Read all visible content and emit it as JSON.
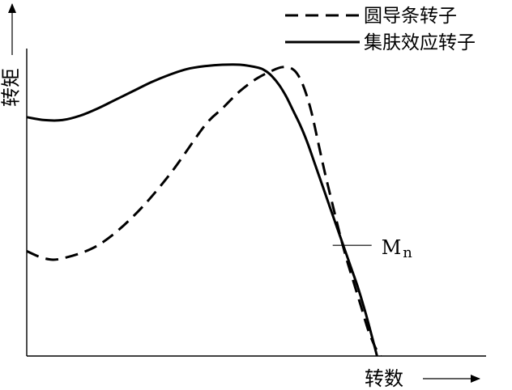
{
  "chart_data": {
    "type": "line",
    "title": "",
    "ylabel": "转矩",
    "xlabel": "转数",
    "xlim": [
      0,
      100
    ],
    "ylim": [
      0,
      100
    ],
    "legend_position": "top-right",
    "annotation": {
      "label": "M",
      "subscript": "n",
      "x": 91.5,
      "y": 38
    },
    "series": [
      {
        "name": "圆导条转子",
        "style": "dashed",
        "color": "#000000",
        "x": [
          0,
          5,
          10,
          20,
          30,
          40,
          50,
          55,
          60,
          65,
          70,
          72,
          74,
          76,
          78,
          80,
          82,
          84,
          86,
          88,
          90,
          92,
          94,
          96,
          98,
          99.5
        ],
        "y": [
          36,
          33.5,
          33.5,
          38,
          48,
          62,
          79,
          85,
          91,
          95.5,
          98.5,
          99.2,
          99,
          97,
          92,
          84,
          73,
          62,
          52,
          42,
          33,
          25,
          17,
          9,
          3,
          0
        ]
      },
      {
        "name": "集肤效应转子",
        "style": "solid",
        "color": "#000000",
        "x": [
          0,
          5,
          10,
          15,
          20,
          25,
          30,
          35,
          40,
          45,
          50,
          55,
          60,
          65,
          67,
          69,
          71,
          73,
          75,
          77,
          79,
          81,
          83,
          85,
          87,
          89,
          91,
          93,
          95,
          97,
          98.5
        ],
        "y": [
          82,
          81,
          81,
          82.5,
          85,
          88,
          91,
          94,
          96.5,
          98.5,
          99.5,
          100,
          100,
          99,
          98,
          96,
          93,
          89,
          84,
          79,
          73,
          66,
          59,
          52,
          45,
          38,
          31,
          24,
          16,
          7,
          0
        ]
      }
    ]
  }
}
